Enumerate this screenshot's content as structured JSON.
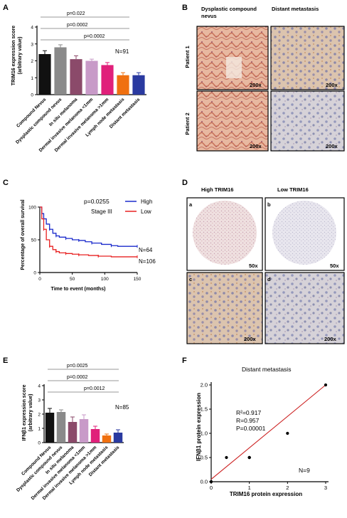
{
  "panels": {
    "A": {
      "label": "A",
      "ylabel": "TRIM16 expression score",
      "ylabel2": "(arbitrary value)",
      "n_label": "N=91",
      "pvalues": [
        "p=0.022",
        "p=0.0002",
        "p=0.0002"
      ],
      "yticks": [
        "0",
        "1",
        "2",
        "3",
        "4"
      ]
    },
    "B": {
      "label": "B",
      "col_headers": [
        "Dysplastic compound",
        "nevus",
        "Distant metastasis"
      ],
      "row_labels": [
        "Patient 1",
        "Patient 2"
      ],
      "magnification": "200x"
    },
    "C": {
      "label": "C",
      "pvalue": "p=0.0255",
      "stage": "Stage III",
      "legend": [
        "High",
        "Low"
      ],
      "n_high": "N=64",
      "n_low": "N=106",
      "ylabel": "Percentage of overall survival",
      "xlabel": "Time to event (months)",
      "yticks": [
        "0",
        "50",
        "100"
      ],
      "xticks": [
        "0",
        "50",
        "100",
        "150"
      ]
    },
    "D": {
      "label": "D",
      "col_headers": [
        "High TRIM16",
        "Low TRIM16"
      ],
      "sub_labels": [
        "a",
        "b",
        "c",
        "d"
      ],
      "mags": [
        "50x",
        "50x",
        "200x",
        "200x"
      ]
    },
    "E": {
      "label": "E",
      "ylabel": "IFNβ1 expression score",
      "ylabel2": "(arbitrary value)",
      "n_label": "N=85",
      "pvalues": [
        "p=0.0025",
        "p=0.0002",
        "p=0.0012"
      ],
      "yticks": [
        "0",
        "1",
        "2",
        "3",
        "4"
      ]
    },
    "F": {
      "label": "F",
      "title": "Distant metastasis",
      "stats": [
        "R²=0.917",
        "R=0.957",
        "P=0.00001"
      ],
      "n_label": "N=9",
      "ylabel": "IFNβ1 protein expression",
      "xlabel": "TRIM16 protein expression",
      "yticks": [
        "0.0",
        "0.5",
        "1.0",
        "1.5",
        "2.0"
      ],
      "xticks": [
        "0",
        "1",
        "2",
        "3"
      ]
    }
  },
  "categories": [
    "Compound Nevus",
    "Dysplastic compound nevus",
    "In situ melanoma",
    "Dermal invasive melanoma <1mm",
    "Dermal invasive melanoma >1mm",
    "Lymph node metastasis",
    "Distant metastasis"
  ],
  "bar_colors": [
    "#111111",
    "#8a8a8a",
    "#8b4a6a",
    "#c89ac8",
    "#e0207a",
    "#f07010",
    "#2a3aa0"
  ],
  "chart_data": [
    {
      "type": "bar",
      "ylabel": "TRIM16 expression score (arbitrary value)",
      "categories": [
        "Compound Nevus",
        "Dysplastic compound nevus",
        "In situ melanoma",
        "Dermal invasive melanoma <1mm",
        "Dermal invasive melanoma >1mm",
        "Lymph node metastasis",
        "Distant metastasis"
      ],
      "values": [
        2.4,
        2.8,
        2.1,
        2.0,
        1.75,
        1.15,
        1.15
      ],
      "errors": [
        0.2,
        0.15,
        0.2,
        0.1,
        0.15,
        0.15,
        0.15
      ],
      "ylim": [
        0,
        4
      ]
    },
    {
      "type": "line",
      "ylabel": "Percentage of overall survival",
      "xlabel": "Time to event (months)",
      "xlim": [
        0,
        150
      ],
      "ylim": [
        0,
        100
      ],
      "series": [
        {
          "name": "High",
          "x": [
            0,
            3,
            6,
            10,
            15,
            20,
            25,
            30,
            40,
            50,
            60,
            70,
            80,
            95,
            110,
            120,
            150
          ],
          "y": [
            100,
            90,
            82,
            74,
            66,
            60,
            56,
            54,
            52,
            50,
            49,
            47,
            45,
            43,
            41,
            40,
            40
          ]
        },
        {
          "name": "Low",
          "x": [
            0,
            3,
            6,
            10,
            15,
            20,
            25,
            30,
            40,
            50,
            60,
            75,
            90,
            110,
            150
          ],
          "y": [
            100,
            82,
            66,
            50,
            40,
            35,
            32,
            30,
            29,
            28,
            27,
            26,
            25,
            24,
            24
          ]
        }
      ]
    },
    {
      "type": "bar",
      "ylabel": "IFNβ1 expression score (arbitrary value)",
      "categories": [
        "Compound Nevus",
        "Dysplastic compound nevus",
        "In situ melanoma",
        "Dermal invasive melanoma <1mm",
        "Dermal invasive melanoma >1mm",
        "Lymph node metastasis",
        "Distant metastasis"
      ],
      "values": [
        2.1,
        2.15,
        1.45,
        1.65,
        0.95,
        0.5,
        0.7
      ],
      "errors": [
        0.3,
        0.15,
        0.35,
        0.3,
        0.2,
        0.1,
        0.2
      ],
      "ylim": [
        0,
        4
      ]
    },
    {
      "type": "scatter",
      "title": "Distant metastasis",
      "xlabel": "TRIM16 protein expression",
      "ylabel": "IFNβ1 protein expression",
      "x": [
        0,
        0,
        1,
        1,
        1,
        1,
        2,
        3,
        0.4
      ],
      "y": [
        0,
        0,
        0.5,
        0.5,
        0.5,
        0.5,
        1,
        2,
        0.5
      ],
      "fit": {
        "slope": 0.65,
        "intercept": 0.05
      },
      "xlim": [
        0,
        3
      ],
      "ylim": [
        0,
        2
      ]
    }
  ]
}
